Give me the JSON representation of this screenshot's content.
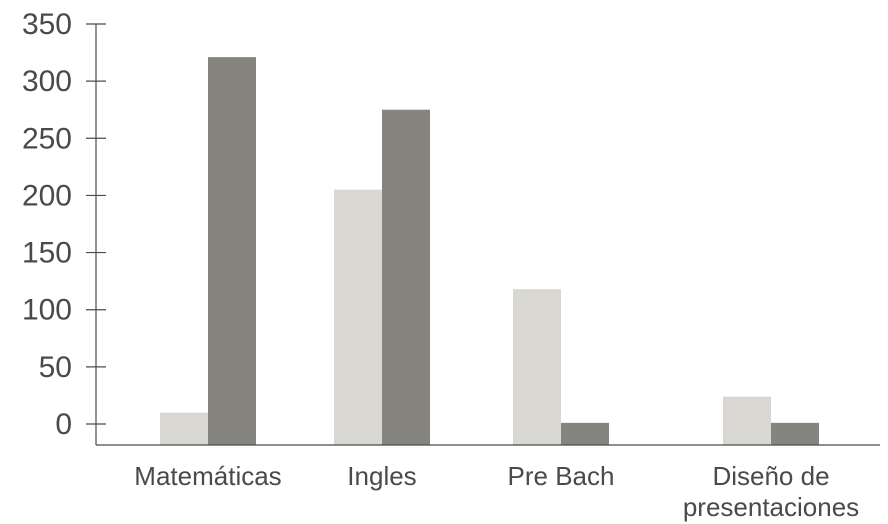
{
  "chart_data": {
    "type": "bar",
    "categories": [
      "Matemáticas",
      "Ingles",
      "Pre Bach",
      "Diseño de presentaciones"
    ],
    "category_label_lines": [
      [
        "Matemáticas"
      ],
      [
        "Ingles"
      ],
      [
        "Pre Bach"
      ],
      [
        "Diseño de",
        "presentaciones"
      ]
    ],
    "series": [
      {
        "values": [
          10,
          205,
          118,
          24
        ],
        "color": "#d9d7d1"
      },
      {
        "values": [
          321,
          275,
          1,
          1
        ],
        "color": "#85847f"
      }
    ],
    "yticks": [
      0,
      50,
      100,
      150,
      200,
      250,
      300,
      350
    ],
    "ylim": [
      0,
      350
    ],
    "title": "",
    "xlabel": "",
    "ylabel": "",
    "grid": false,
    "legend": "none"
  }
}
